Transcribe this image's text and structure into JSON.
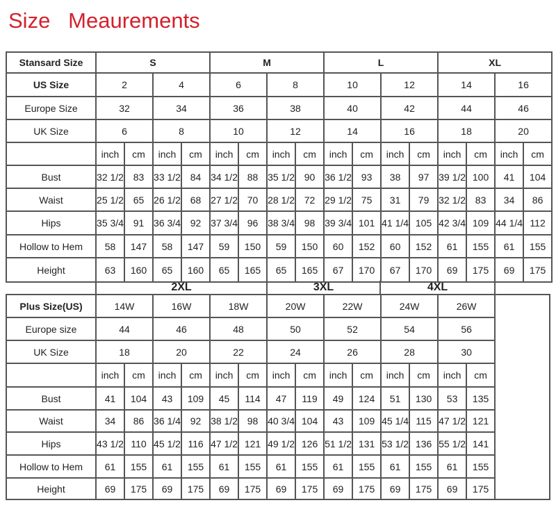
{
  "title": "Size   Meaurements",
  "title_color": "#d3212c",
  "standard": {
    "header_label": "Stansard Size",
    "groups": [
      "S",
      "M",
      "L",
      "XL"
    ],
    "rows": [
      {
        "label": "US Size",
        "bold": true,
        "values": [
          "2",
          "4",
          "6",
          "8",
          "10",
          "12",
          "14",
          "16"
        ]
      },
      {
        "label": "Europe Size",
        "values": [
          "32",
          "34",
          "36",
          "38",
          "40",
          "42",
          "44",
          "46"
        ]
      },
      {
        "label": "UK Size",
        "values": [
          "6",
          "8",
          "10",
          "12",
          "14",
          "16",
          "18",
          "20"
        ]
      }
    ],
    "units": [
      "inch",
      "cm"
    ],
    "measurements": [
      {
        "label": "Bust",
        "values": [
          "32 1/2",
          "83",
          "33 1/2",
          "84",
          "34 1/2",
          "88",
          "35 1/2",
          "90",
          "36 1/2",
          "93",
          "38",
          "97",
          "39 1/2",
          "100",
          "41",
          "104"
        ]
      },
      {
        "label": "Waist",
        "values": [
          "25 1/2",
          "65",
          "26 1/2",
          "68",
          "27 1/2",
          "70",
          "28 1/2",
          "72",
          "29 1/2",
          "75",
          "31",
          "79",
          "32 1/2",
          "83",
          "34",
          "86"
        ]
      },
      {
        "label": "Hips",
        "values": [
          "35 3/4",
          "91",
          "36 3/4",
          "92",
          "37 3/4",
          "96",
          "38 3/4",
          "98",
          "39 3/4",
          "101",
          "41 1/4",
          "105",
          "42 3/4",
          "109",
          "44 1/4",
          "112"
        ]
      },
      {
        "label": "Hollow to Hem",
        "values": [
          "58",
          "147",
          "58",
          "147",
          "59",
          "150",
          "59",
          "150",
          "60",
          "152",
          "60",
          "152",
          "61",
          "155",
          "61",
          "155"
        ]
      },
      {
        "label": "Height",
        "values": [
          "63",
          "160",
          "65",
          "160",
          "65",
          "165",
          "65",
          "165",
          "67",
          "170",
          "67",
          "170",
          "69",
          "175",
          "69",
          "175"
        ]
      }
    ]
  },
  "plus": {
    "groups": [
      "2XL",
      "3XL",
      "4XL"
    ],
    "rows": [
      {
        "label": "Plus Size(US)",
        "bold": true,
        "values": [
          "14W",
          "16W",
          "18W",
          "20W",
          "22W",
          "24W",
          "26W"
        ]
      },
      {
        "label": "Europe size",
        "values": [
          "44",
          "46",
          "48",
          "50",
          "52",
          "54",
          "56"
        ]
      },
      {
        "label": "UK Size",
        "values": [
          "18",
          "20",
          "22",
          "24",
          "26",
          "28",
          "30"
        ]
      }
    ],
    "units": [
      "inch",
      "cm"
    ],
    "measurements": [
      {
        "label": "Bust",
        "values": [
          "41",
          "104",
          "43",
          "109",
          "45",
          "114",
          "47",
          "119",
          "49",
          "124",
          "51",
          "130",
          "53",
          "135"
        ]
      },
      {
        "label": "Waist",
        "values": [
          "34",
          "86",
          "36 1/4",
          "92",
          "38 1/2",
          "98",
          "40 3/4",
          "104",
          "43",
          "109",
          "45 1/4",
          "115",
          "47 1/2",
          "121"
        ]
      },
      {
        "label": "Hips",
        "values": [
          "43 1/2",
          "110",
          "45 1/2",
          "116",
          "47 1/2",
          "121",
          "49 1/2",
          "126",
          "51 1/2",
          "131",
          "53 1/2",
          "136",
          "55 1/2",
          "141"
        ]
      },
      {
        "label": "Hollow to Hem",
        "values": [
          "61",
          "155",
          "61",
          "155",
          "61",
          "155",
          "61",
          "155",
          "61",
          "155",
          "61",
          "155",
          "61",
          "155"
        ]
      },
      {
        "label": "Height",
        "values": [
          "69",
          "175",
          "69",
          "175",
          "69",
          "175",
          "69",
          "175",
          "69",
          "175",
          "69",
          "175",
          "69",
          "175"
        ]
      }
    ]
  }
}
